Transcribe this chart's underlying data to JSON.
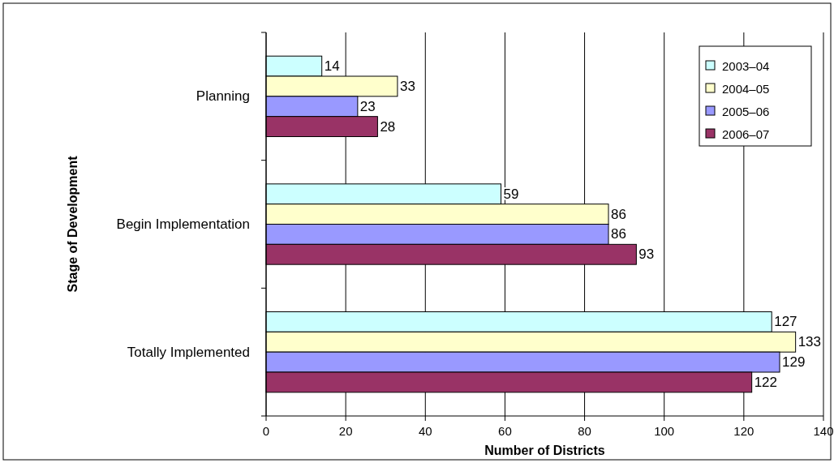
{
  "chart_data": {
    "type": "bar",
    "orientation": "horizontal",
    "ylabel": "Stage of Development",
    "xlabel": "Number of Districts",
    "categories": [
      "Planning",
      "Begin Implementation",
      "Totally Implemented"
    ],
    "series": [
      {
        "name": "2003–04",
        "color": "#ccffff",
        "values": [
          14,
          59,
          127
        ]
      },
      {
        "name": "2004–05",
        "color": "#ffffcc",
        "values": [
          33,
          86,
          133
        ]
      },
      {
        "name": "2005–06",
        "color": "#9999ff",
        "values": [
          23,
          86,
          129
        ]
      },
      {
        "name": "2006–07",
        "color": "#993366",
        "values": [
          28,
          93,
          122
        ]
      }
    ],
    "xlim": [
      0,
      140
    ],
    "xticks": [
      0,
      20,
      40,
      60,
      80,
      100,
      120,
      140
    ],
    "grid": "x",
    "legend": "top right",
    "data_labels": true
  }
}
